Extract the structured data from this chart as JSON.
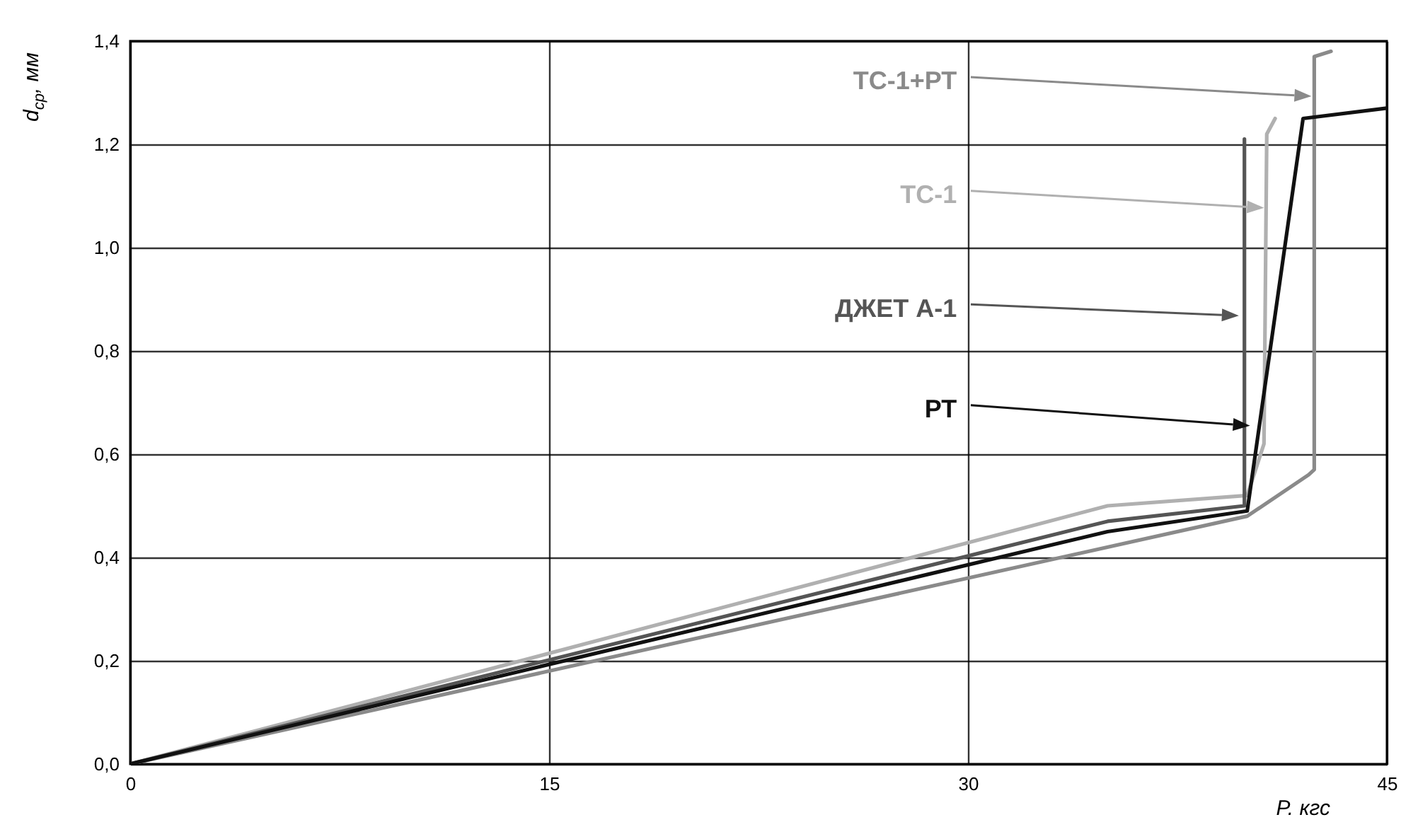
{
  "chart_data": {
    "type": "line",
    "xlabel": "P. кгс",
    "ylabel": "d$_{ср}$, мм",
    "xlim": [
      0,
      45
    ],
    "xticks": [
      0,
      15,
      30,
      45
    ],
    "ylim": [
      0,
      1.4
    ],
    "yticks": [
      {
        "value": 0,
        "label": "0,0"
      },
      {
        "value": 0.2,
        "label": "0,2"
      },
      {
        "value": 0.4,
        "label": "0,4"
      },
      {
        "value": 0.6,
        "label": "0,6"
      },
      {
        "value": 0.8,
        "label": "0,8"
      },
      {
        "value": 1.0,
        "label": "1,0"
      },
      {
        "value": 1.2,
        "label": "1,2"
      },
      {
        "value": 1.4,
        "label": "1,4"
      }
    ],
    "grid": true,
    "series": [
      {
        "name": "ТС-1+РТ",
        "color": "#8a8a8a",
        "x": [
          0,
          40,
          42.2,
          42.4,
          42.4,
          43
        ],
        "values": [
          0,
          0.48,
          0.56,
          0.57,
          1.37,
          1.38
        ]
      },
      {
        "name": "ТС-1",
        "color": "#b0b0b0",
        "x": [
          0,
          35,
          40,
          40.6,
          40.7,
          41
        ],
        "values": [
          0,
          0.5,
          0.52,
          0.62,
          1.22,
          1.25
        ]
      },
      {
        "name": "ДЖЕТ А-1",
        "color": "#555555",
        "x": [
          0,
          35,
          39.9,
          39.9
        ],
        "values": [
          0,
          0.47,
          0.5,
          1.21
        ]
      },
      {
        "name": "РТ",
        "color": "#111111",
        "x": [
          0,
          35,
          40,
          42,
          45
        ],
        "values": [
          0,
          0.45,
          0.49,
          1.25,
          1.27
        ]
      }
    ]
  }
}
